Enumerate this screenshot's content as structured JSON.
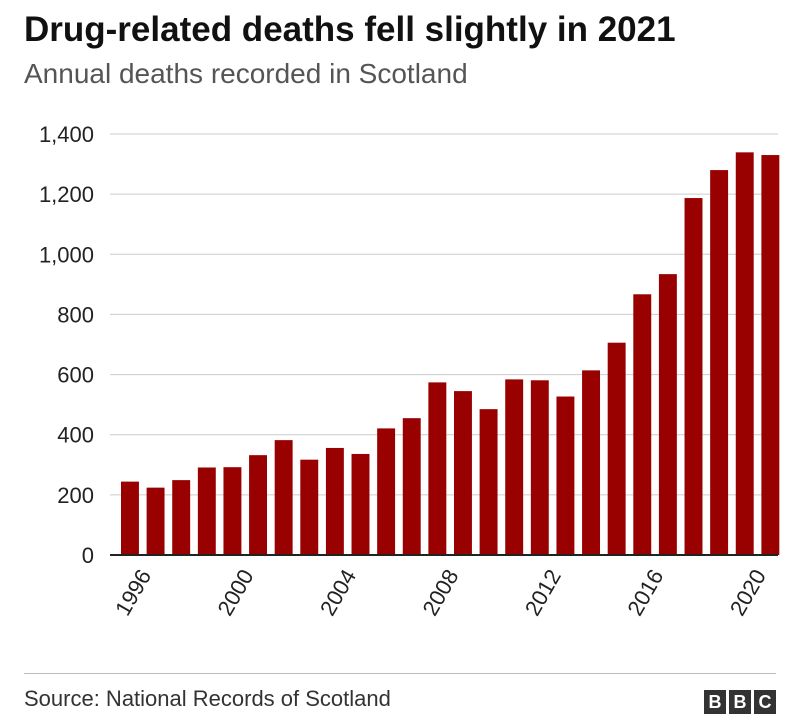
{
  "title": "Drug-related deaths fell slightly in 2021",
  "subtitle": "Annual deaths recorded in Scotland",
  "source": "Source: National Records of Scotland",
  "logo_letters": [
    "B",
    "B",
    "C"
  ],
  "colors": {
    "bar": "#990000",
    "grid": "#cccccc",
    "axis": "#222222"
  },
  "chart_data": {
    "type": "bar",
    "categories": [
      "1996",
      "1997",
      "1998",
      "1999",
      "2000",
      "2001",
      "2002",
      "2003",
      "2004",
      "2005",
      "2006",
      "2007",
      "2008",
      "2009",
      "2010",
      "2011",
      "2012",
      "2013",
      "2014",
      "2015",
      "2016",
      "2017",
      "2018",
      "2019",
      "2020",
      "2021"
    ],
    "values": [
      244,
      224,
      249,
      291,
      292,
      332,
      382,
      317,
      356,
      336,
      421,
      455,
      574,
      545,
      485,
      584,
      581,
      527,
      614,
      706,
      867,
      934,
      1187,
      1280,
      1339,
      1330
    ],
    "x_tick_labels": [
      "1996",
      "2000",
      "2004",
      "2008",
      "2012",
      "2016",
      "2020"
    ],
    "y_ticks": [
      0,
      200,
      400,
      600,
      800,
      1000,
      1200,
      1400
    ],
    "y_tick_labels": [
      "0",
      "200",
      "400",
      "600",
      "800",
      "1,000",
      "1,200",
      "1,400"
    ],
    "ylim": [
      0,
      1400
    ],
    "grid": true
  }
}
